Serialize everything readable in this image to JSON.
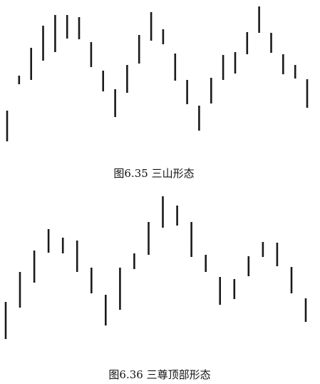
{
  "figures": [
    {
      "caption": "图6.35 三山形态"
    },
    {
      "caption": "图6.36 三尊顶部形态"
    }
  ],
  "chart_data": [
    {
      "type": "bar",
      "subtype": "price-range-bars",
      "title": "图6.35 三山形态",
      "axes_visible": false,
      "grid": false,
      "ylim": [
        0,
        190
      ],
      "bar_color": "#1a1a1a",
      "bars": [
        {
          "low": 0,
          "high": 43
        },
        {
          "low": 80,
          "high": 92
        },
        {
          "low": 86,
          "high": 131
        },
        {
          "low": 113,
          "high": 162
        },
        {
          "low": 125,
          "high": 177
        },
        {
          "low": 144,
          "high": 177
        },
        {
          "low": 143,
          "high": 174
        },
        {
          "low": 104,
          "high": 139
        },
        {
          "low": 70,
          "high": 99
        },
        {
          "low": 34,
          "high": 73
        },
        {
          "low": 68,
          "high": 107
        },
        {
          "low": 109,
          "high": 149
        },
        {
          "low": 141,
          "high": 181
        },
        {
          "low": 136,
          "high": 157
        },
        {
          "low": 85,
          "high": 123
        },
        {
          "low": 52,
          "high": 86
        },
        {
          "low": 15,
          "high": 50
        },
        {
          "low": 53,
          "high": 89
        },
        {
          "low": 86,
          "high": 121
        },
        {
          "low": 95,
          "high": 125
        },
        {
          "low": 122,
          "high": 153
        },
        {
          "low": 152,
          "high": 189
        },
        {
          "low": 124,
          "high": 152
        },
        {
          "low": 94,
          "high": 122
        },
        {
          "low": 88,
          "high": 107
        },
        {
          "low": 47,
          "high": 87
        }
      ]
    },
    {
      "type": "bar",
      "subtype": "price-range-bars",
      "title": "图6.36 三尊顶部形态",
      "axes_visible": false,
      "grid": false,
      "ylim": [
        0,
        200
      ],
      "bar_color": "#1a1a1a",
      "bars": [
        {
          "low": 0,
          "high": 52
        },
        {
          "low": 44,
          "high": 94
        },
        {
          "low": 79,
          "high": 124
        },
        {
          "low": 121,
          "high": 154
        },
        {
          "low": 120,
          "high": 142
        },
        {
          "low": 94,
          "high": 138
        },
        {
          "low": 64,
          "high": 100
        },
        {
          "low": 19,
          "high": 62
        },
        {
          "low": 41,
          "high": 100
        },
        {
          "low": 98,
          "high": 120
        },
        {
          "low": 118,
          "high": 164
        },
        {
          "low": 156,
          "high": 200
        },
        {
          "low": 159,
          "high": 187
        },
        {
          "low": 115,
          "high": 164
        },
        {
          "low": 94,
          "high": 118
        },
        {
          "low": 48,
          "high": 87
        },
        {
          "low": 56,
          "high": 84
        },
        {
          "low": 88,
          "high": 116
        },
        {
          "low": 115,
          "high": 136
        },
        {
          "low": 102,
          "high": 135
        },
        {
          "low": 64,
          "high": 101
        },
        {
          "low": 24,
          "high": 57
        }
      ]
    }
  ]
}
